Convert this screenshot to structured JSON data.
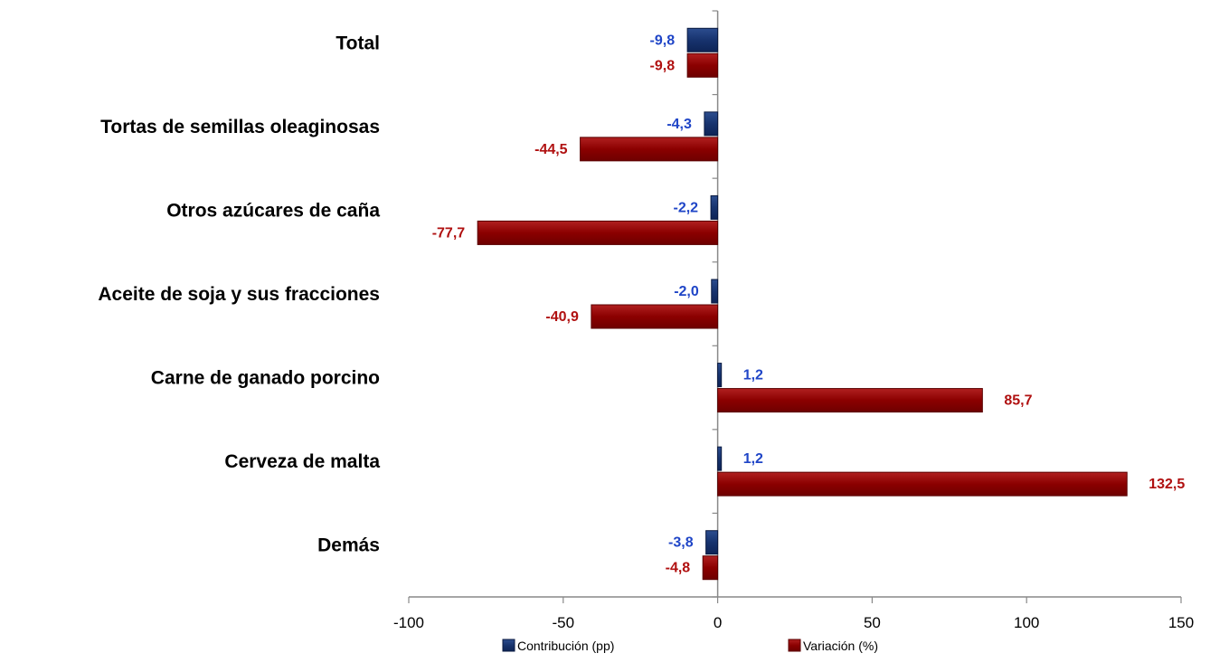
{
  "chart_data": {
    "type": "bar",
    "orientation": "horizontal",
    "categories": [
      "Total",
      "Tortas de semillas oleaginosas",
      "Otros azúcares de caña",
      "Aceite de soja y sus fracciones",
      "Carne de ganado porcino",
      "Cerveza de malta",
      "Demás"
    ],
    "series": [
      {
        "name": "Contribución (pp)",
        "color": "#17336e",
        "label_color": "#1f45c7",
        "values": [
          -9.8,
          -4.3,
          -2.2,
          -2.0,
          1.2,
          1.2,
          -3.8
        ],
        "labels": [
          "-9,8",
          "-4,3",
          "-2,2",
          "-2,0",
          "1,2",
          "1,2",
          "-3,8"
        ]
      },
      {
        "name": "Variación (%)",
        "color": "#8b0000",
        "label_color": "#b01010",
        "values": [
          -9.8,
          -44.5,
          -77.7,
          -40.9,
          85.7,
          132.5,
          -4.8
        ],
        "labels": [
          "-9,8",
          "-44,5",
          "-77,7",
          "-40,9",
          "85,7",
          "132,5",
          "-4,8"
        ]
      }
    ],
    "xlim": [
      -100,
      150
    ],
    "xticks": [
      -100,
      -50,
      0,
      50,
      100,
      150
    ],
    "xtick_labels": [
      "-100",
      "-50",
      "0",
      "50",
      "100",
      "150"
    ],
    "legend_position": "bottom",
    "grid": false
  }
}
